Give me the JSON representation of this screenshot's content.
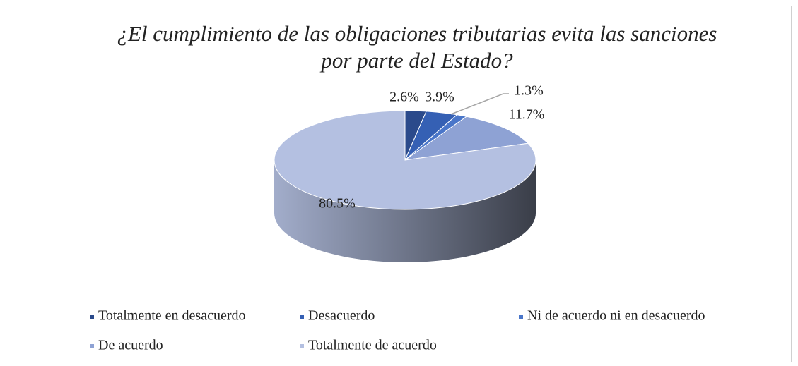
{
  "chart_data": {
    "type": "pie",
    "title": "¿El cumplimiento de las obligaciones tributarias evita las sanciones",
    "subtitle": "por parte del Estado?",
    "categories": [
      "Totalmente en desacuerdo",
      "Desacuerdo",
      "Ni de acuerdo ni en desacuerdo",
      "De acuerdo",
      "Totalmente de acuerdo"
    ],
    "values": [
      2.6,
      3.9,
      1.3,
      11.7,
      80.5
    ],
    "value_labels": [
      "2.6%",
      "3.9%",
      "1.3%",
      "11.7%",
      "80.5%"
    ],
    "colors": [
      "#2b4a8b",
      "#3560b4",
      "#4a76c9",
      "#8ea2d4",
      "#b4c0e1"
    ],
    "legend": "bottom"
  }
}
